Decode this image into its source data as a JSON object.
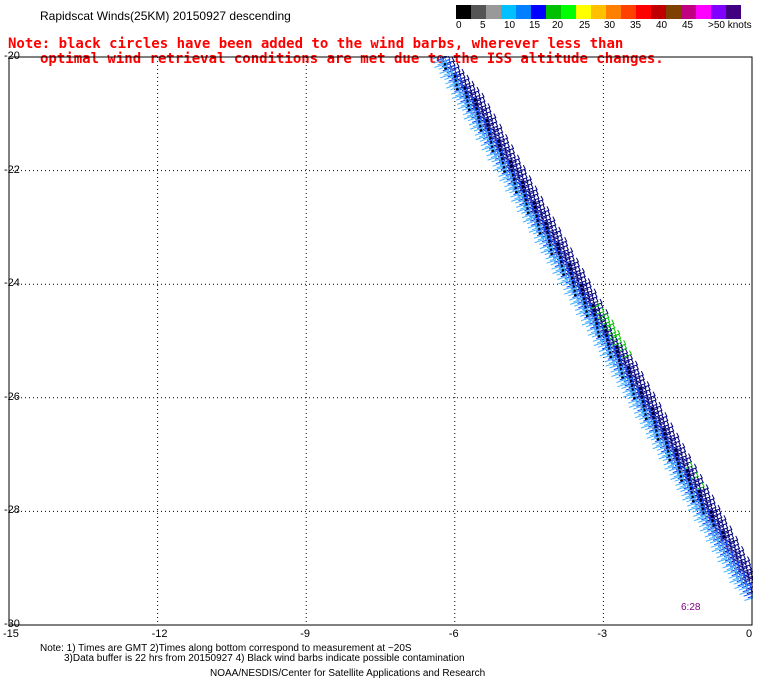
{
  "header": {
    "title": "Rapidscat Winds(25KM) 20150927 descending"
  },
  "note": {
    "line1": "Note: black circles have been added to the wind barbs, wherever less than",
    "line2": "optimal wind retrieval conditions are met due to the ISS altitude changes."
  },
  "legend": {
    "unit": "knots",
    "labels": [
      "0",
      "5",
      "10",
      "15",
      "20",
      "25",
      "30",
      "35",
      "40",
      "45",
      ">50 knots"
    ],
    "colors": [
      "#000000",
      "#555555",
      "#999999",
      "#00c0ff",
      "#0080ff",
      "#0000ff",
      "#00c000",
      "#00ff00",
      "#ffff00",
      "#ffc000",
      "#ff8000",
      "#ff4000",
      "#ff0000",
      "#c00000",
      "#804000",
      "#c00080",
      "#ff00ff",
      "#8000ff",
      "#400080"
    ]
  },
  "axes": {
    "x_ticks": [
      "-15",
      "-12",
      "-9",
      "-6",
      "-3",
      "0"
    ],
    "y_ticks": [
      "-20",
      "-22",
      "-24",
      "-26",
      "-28",
      "-30"
    ]
  },
  "time_label": "6:28",
  "footer": {
    "line1": "Note: 1) Times are GMT 2)Times along bottom correspond to measurement at ~20S",
    "line2": "3)Data buffer is 22 hrs from 20150927 4) Black wind barbs indicate possible contamination",
    "line3": "NOAA/NESDIS/Center for Satellite Applications and Research"
  },
  "colors": {
    "note_text": "#ff0000",
    "barb_light": "#40b0ff",
    "barb_mid": "#0040ff",
    "barb_dark": "#000080",
    "barb_green": "#00c000",
    "contamination_dot": "#000000"
  },
  "icons": [
    "wind-barb-icon",
    "quality-flag-dot-icon"
  ]
}
